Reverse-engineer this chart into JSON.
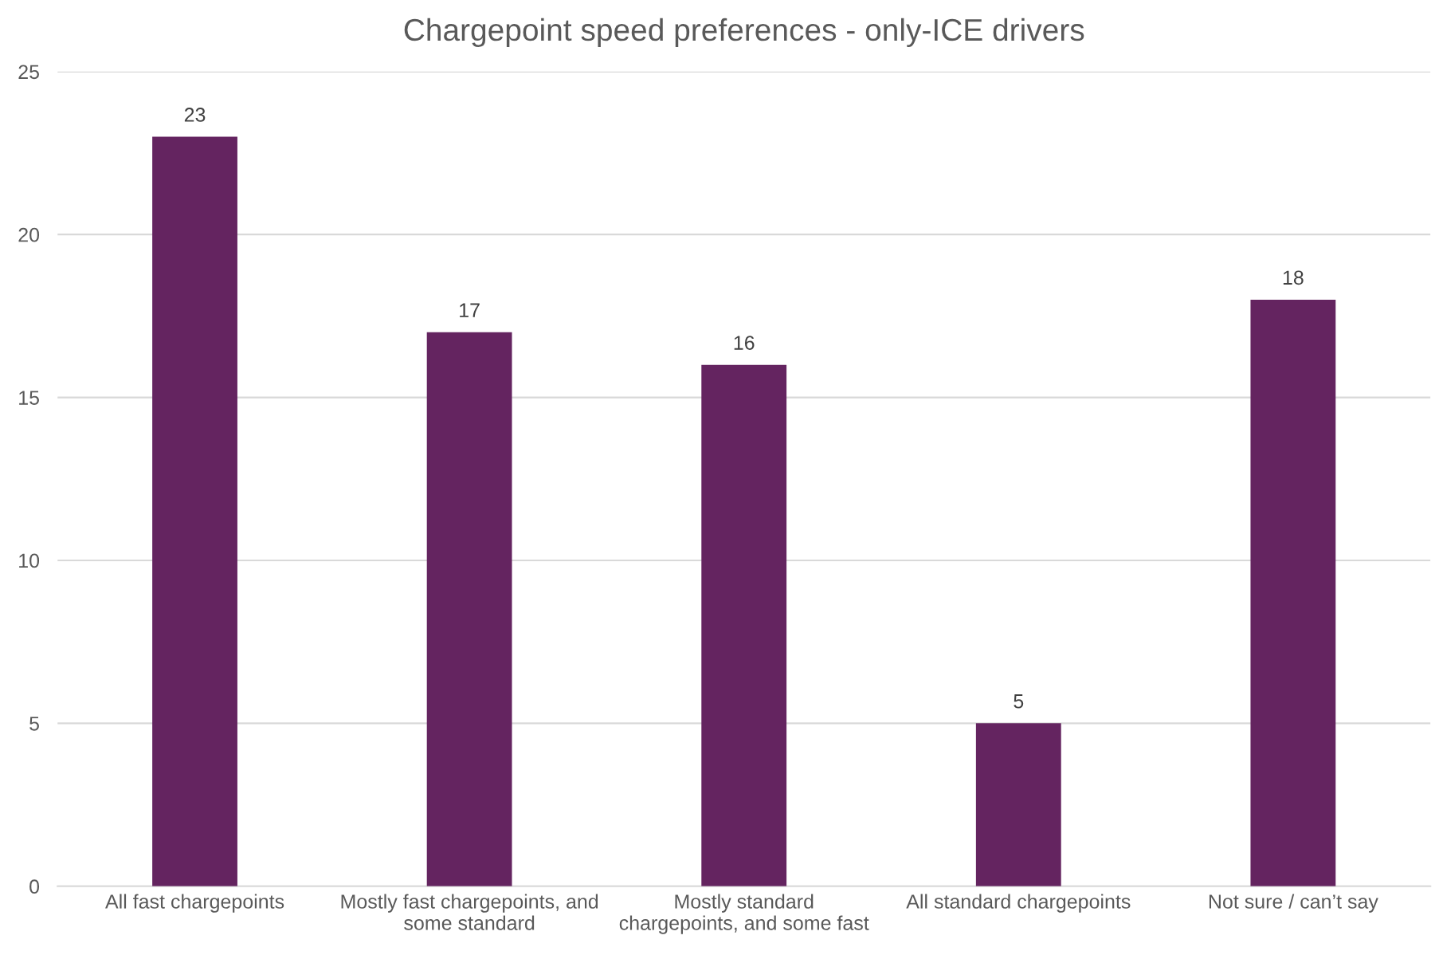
{
  "chart_data": {
    "type": "bar",
    "title": "Chargepoint speed preferences - only-ICE drivers",
    "categories": [
      "All fast chargepoints",
      "Mostly fast chargepoints, and\nsome standard",
      "Mostly standard\nchargepoints, and some fast",
      "All standard chargepoints",
      "Not sure / can’t say"
    ],
    "values": [
      23,
      17,
      16,
      5,
      18
    ],
    "color": "#642460",
    "ylim": [
      0,
      25
    ],
    "yticks": [
      0,
      5,
      10,
      15,
      20,
      25
    ],
    "grid": "y",
    "data_labels": true,
    "legend": false
  }
}
